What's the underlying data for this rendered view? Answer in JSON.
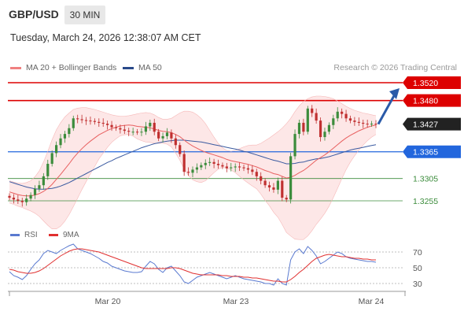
{
  "header": {
    "pair": "GBP/USD",
    "timeframe": "30 MIN",
    "datetime": "Tuesday, March 24, 2026 12:38:07 AM CET"
  },
  "legend": {
    "ma20": "MA 20 + Bollinger Bands",
    "ma50": "MA 50",
    "copyright": "Research © 2026 Trading Central"
  },
  "indicator_legend": {
    "rsi": "RSI",
    "ma9": "9MA"
  },
  "colors": {
    "resistance": "#dd0000",
    "pivot": "#2266dd",
    "support": "#3c8c3c",
    "ma20": "#e86060",
    "ma50": "#3a5aa0",
    "rsi": "#5a7ad0",
    "rsi_ma": "#e03030",
    "candle_up": "#3c8c3c",
    "candle_down": "#c03030",
    "band_fill": "#fde4e4"
  },
  "chart_data": [
    {
      "type": "candlestick",
      "title": "GBP/USD 30 MIN",
      "x_ticks": [
        "Mar 20",
        "Mar 23",
        "Mar 24"
      ],
      "ylim": [
        1.324,
        1.353
      ],
      "current_price": 1.3427,
      "levels": [
        {
          "label": "1.3520",
          "value": 1.352,
          "kind": "resistance"
        },
        {
          "label": "1.3480",
          "value": 1.348,
          "kind": "resistance"
        },
        {
          "label": "1.3427",
          "value": 1.3427,
          "kind": "current"
        },
        {
          "label": "1.3365",
          "value": 1.3365,
          "kind": "pivot"
        },
        {
          "label": "1.3305",
          "value": 1.3305,
          "kind": "support"
        },
        {
          "label": "1.3255",
          "value": 1.3255,
          "kind": "support"
        }
      ],
      "projection": {
        "from": 1.3427,
        "to": 1.352
      },
      "close": [
        1.3262,
        1.3258,
        1.3255,
        1.3252,
        1.326,
        1.3268,
        1.3282,
        1.329,
        1.331,
        1.3338,
        1.3362,
        1.338,
        1.3395,
        1.3405,
        1.3418,
        1.344,
        1.3438,
        1.3436,
        1.3435,
        1.3434,
        1.3432,
        1.343,
        1.3428,
        1.3425,
        1.342,
        1.3418,
        1.3415,
        1.3412,
        1.341,
        1.341,
        1.3409,
        1.341,
        1.3422,
        1.343,
        1.341,
        1.3395,
        1.34,
        1.3408,
        1.3395,
        1.338,
        1.336,
        1.332,
        1.3318,
        1.3325,
        1.333,
        1.3335,
        1.334,
        1.3342,
        1.3338,
        1.3335,
        1.3332,
        1.3328,
        1.333,
        1.3332,
        1.333,
        1.3328,
        1.3325,
        1.332,
        1.331,
        1.33,
        1.329,
        1.3285,
        1.328,
        1.33,
        1.3262,
        1.3258,
        1.3355,
        1.3405,
        1.343,
        1.341,
        1.3462,
        1.3452,
        1.3435,
        1.3398,
        1.341,
        1.3425,
        1.344,
        1.3455,
        1.345,
        1.344,
        1.3435,
        1.3432,
        1.343,
        1.3428,
        1.3427,
        1.3428,
        1.3427
      ],
      "ma20": [
        1.3275,
        1.3272,
        1.3269,
        1.3267,
        1.3266,
        1.3266,
        1.3268,
        1.3271,
        1.3276,
        1.3283,
        1.3292,
        1.3303,
        1.3314,
        1.3326,
        1.3338,
        1.3351,
        1.3362,
        1.3372,
        1.3381,
        1.3389,
        1.3396,
        1.3403,
        1.3408,
        1.3413,
        1.3417,
        1.342,
        1.3423,
        1.3424,
        1.3425,
        1.3424,
        1.3422,
        1.3421,
        1.342,
        1.3419,
        1.3416,
        1.3413,
        1.3411,
        1.341,
        1.3408,
        1.3404,
        1.3399,
        1.3391,
        1.3384,
        1.3378,
        1.3373,
        1.3368,
        1.3364,
        1.3361,
        1.3358,
        1.3355,
        1.3352,
        1.3348,
        1.3345,
        1.3343,
        1.3341,
        1.3339,
        1.3337,
        1.3334,
        1.3331,
        1.3327,
        1.3323,
        1.332,
        1.3316,
        1.3314,
        1.331,
        1.3306,
        1.3308,
        1.3312,
        1.3318,
        1.3323,
        1.333,
        1.3338,
        1.3346,
        1.3352,
        1.3358,
        1.3365,
        1.3373,
        1.3381,
        1.3389,
        1.3396,
        1.3402,
        1.3407,
        1.3412,
        1.3416,
        1.342,
        1.3423,
        1.3425
      ],
      "bb_upper": [
        1.33,
        1.3297,
        1.3295,
        1.3294,
        1.3296,
        1.33,
        1.3309,
        1.3322,
        1.3342,
        1.3366,
        1.3392,
        1.3414,
        1.343,
        1.3443,
        1.3452,
        1.346,
        1.3463,
        1.3464,
        1.3464,
        1.3462,
        1.346,
        1.3457,
        1.3454,
        1.3451,
        1.3448,
        1.3446,
        1.3445,
        1.3445,
        1.3446,
        1.3448,
        1.345,
        1.3452,
        1.3453,
        1.3452,
        1.3448,
        1.3442,
        1.3438,
        1.3438,
        1.344,
        1.3446,
        1.3452,
        1.3456,
        1.3456,
        1.3454,
        1.3448,
        1.344,
        1.3428,
        1.3413,
        1.3398,
        1.3384,
        1.3374,
        1.3368,
        1.3366,
        1.3368,
        1.3372,
        1.3376,
        1.3379,
        1.338,
        1.338,
        1.3384,
        1.339,
        1.3396,
        1.3403,
        1.341,
        1.3418,
        1.3428,
        1.344,
        1.3455,
        1.3468,
        1.3478,
        1.3484,
        1.3488,
        1.349,
        1.349,
        1.3489,
        1.3487,
        1.3484,
        1.3479,
        1.3473,
        1.3467,
        1.3462,
        1.3458,
        1.3455,
        1.3452,
        1.345,
        1.3448,
        1.3446
      ],
      "bb_lower": [
        1.325,
        1.3247,
        1.3243,
        1.324,
        1.3236,
        1.3232,
        1.3227,
        1.322,
        1.321,
        1.32,
        1.3192,
        1.3192,
        1.3198,
        1.3209,
        1.3224,
        1.3242,
        1.3261,
        1.328,
        1.3298,
        1.3316,
        1.3332,
        1.3349,
        1.3362,
        1.3375,
        1.3386,
        1.3394,
        1.3401,
        1.3403,
        1.3404,
        1.34,
        1.3394,
        1.339,
        1.3387,
        1.3386,
        1.3384,
        1.3384,
        1.3384,
        1.3382,
        1.3376,
        1.3362,
        1.3346,
        1.3326,
        1.3312,
        1.3302,
        1.3298,
        1.3296,
        1.33,
        1.3309,
        1.3318,
        1.3326,
        1.333,
        1.3328,
        1.3324,
        1.3318,
        1.331,
        1.3302,
        1.3295,
        1.3288,
        1.3282,
        1.327,
        1.3256,
        1.3244,
        1.3229,
        1.3218,
        1.3202,
        1.3184,
        1.3176,
        1.3169,
        1.3168,
        1.3168,
        1.3176,
        1.3188,
        1.3202,
        1.3214,
        1.3227,
        1.3243,
        1.3262,
        1.3283,
        1.3305,
        1.3325,
        1.3342,
        1.3356,
        1.3369,
        1.338,
        1.339,
        1.3398,
        1.3404
      ],
      "ma50": [
        1.3298,
        1.3295,
        1.3292,
        1.3289,
        1.3286,
        1.3284,
        1.3282,
        1.3281,
        1.3281,
        1.3282,
        1.3283,
        1.3285,
        1.3288,
        1.3292,
        1.3296,
        1.3301,
        1.3306,
        1.3311,
        1.3316,
        1.3321,
        1.3326,
        1.3331,
        1.3336,
        1.3341,
        1.3345,
        1.335,
        1.3354,
        1.3358,
        1.3362,
        1.3366,
        1.337,
        1.3374,
        1.3377,
        1.338,
        1.3383,
        1.3385,
        1.3387,
        1.3389,
        1.339,
        1.3391,
        1.3391,
        1.3391,
        1.339,
        1.3389,
        1.3388,
        1.3387,
        1.3385,
        1.3383,
        1.3381,
        1.3379,
        1.3377,
        1.3375,
        1.3373,
        1.3371,
        1.3369,
        1.3366,
        1.3364,
        1.3361,
        1.3358,
        1.3355,
        1.3352,
        1.3349,
        1.3346,
        1.3344,
        1.3341,
        1.3338,
        1.3338,
        1.3339,
        1.3341,
        1.3342,
        1.3345,
        1.3347,
        1.3349,
        1.335,
        1.3352,
        1.3354,
        1.3357,
        1.336,
        1.3363,
        1.3366,
        1.3369,
        1.3371,
        1.3373,
        1.3375,
        1.3377,
        1.3379,
        1.3381
      ]
    },
    {
      "type": "line",
      "title": "RSI",
      "ylim": [
        20,
        85
      ],
      "y_ticks": [
        "70",
        "50",
        "30"
      ],
      "x_ticks": [
        "Mar 20",
        "Mar 23",
        "Mar 24"
      ],
      "series": [
        {
          "name": "RSI",
          "values": [
            45,
            40,
            38,
            35,
            40,
            48,
            55,
            60,
            68,
            72,
            70,
            68,
            72,
            75,
            78,
            80,
            74,
            72,
            70,
            68,
            65,
            62,
            58,
            56,
            52,
            50,
            48,
            46,
            45,
            44,
            44,
            45,
            52,
            58,
            55,
            48,
            44,
            50,
            52,
            46,
            40,
            32,
            30,
            34,
            38,
            40,
            42,
            44,
            42,
            40,
            38,
            36,
            38,
            40,
            38,
            36,
            35,
            34,
            33,
            32,
            30,
            30,
            28,
            36,
            30,
            28,
            60,
            70,
            74,
            68,
            77,
            72,
            65,
            55,
            58,
            62,
            66,
            70,
            68,
            64,
            62,
            61,
            60,
            59,
            58,
            58,
            57
          ]
        },
        {
          "name": "9MA",
          "values": [
            48,
            47,
            45,
            44,
            43,
            43,
            44,
            46,
            49,
            53,
            57,
            61,
            65,
            68,
            71,
            73,
            74,
            74,
            73,
            72,
            71,
            70,
            68,
            66,
            64,
            62,
            60,
            58,
            56,
            54,
            52,
            50,
            49,
            49,
            49,
            49,
            49,
            49,
            50,
            50,
            49,
            47,
            45,
            43,
            42,
            41,
            41,
            41,
            41,
            41,
            40,
            40,
            39,
            39,
            39,
            38,
            38,
            37,
            37,
            36,
            35,
            34,
            33,
            33,
            32,
            32,
            35,
            39,
            44,
            48,
            53,
            58,
            62,
            64,
            66,
            67,
            66,
            65,
            64,
            64,
            63,
            62,
            62,
            61,
            61,
            60,
            60
          ]
        }
      ]
    }
  ]
}
